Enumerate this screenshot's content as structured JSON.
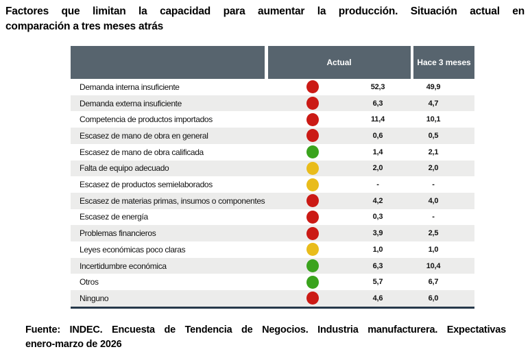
{
  "title": {
    "line1": "Factores que limitan la capacidad para aumentar la producción. Situación actual en",
    "line2": "comparación a tres meses atrás"
  },
  "table": {
    "columns": {
      "factor": "",
      "actual": "Actual",
      "three_months_ago": "Hace 3 meses"
    },
    "rows": [
      {
        "factor": "Demanda interna insuficiente",
        "status": "red",
        "actual": "52,3",
        "three_months_ago": "49,9"
      },
      {
        "factor": "Demanda externa insuficiente",
        "status": "red",
        "actual": "6,3",
        "three_months_ago": "4,7"
      },
      {
        "factor": "Competencia de productos importados",
        "status": "red",
        "actual": "11,4",
        "three_months_ago": "10,1"
      },
      {
        "factor": "Escasez de mano de obra en general",
        "status": "red",
        "actual": "0,6",
        "three_months_ago": "0,5"
      },
      {
        "factor": "Escasez de mano de obra calificada",
        "status": "green",
        "actual": "1,4",
        "three_months_ago": "2,1"
      },
      {
        "factor": "Falta de equipo adecuado",
        "status": "yellow",
        "actual": "2,0",
        "three_months_ago": "2,0"
      },
      {
        "factor": "Escasez de productos semielaborados",
        "status": "yellow",
        "actual": "-",
        "three_months_ago": "-"
      },
      {
        "factor": "Escasez de materias primas, insumos o componentes",
        "status": "red",
        "actual": "4,2",
        "three_months_ago": "4,0"
      },
      {
        "factor": "Escasez de energía",
        "status": "red",
        "actual": "0,3",
        "three_months_ago": "-"
      },
      {
        "factor": "Problemas financieros",
        "status": "red",
        "actual": "3,9",
        "three_months_ago": "2,5"
      },
      {
        "factor": "Leyes económicas poco claras",
        "status": "yellow",
        "actual": "1,0",
        "three_months_ago": "1,0"
      },
      {
        "factor": "Incertidumbre económica",
        "status": "green",
        "actual": "6,3",
        "three_months_ago": "10,4"
      },
      {
        "factor": "Otros",
        "status": "green",
        "actual": "5,7",
        "three_months_ago": "6,7"
      },
      {
        "factor": "Ninguno",
        "status": "red",
        "actual": "4,6",
        "three_months_ago": "6,0"
      }
    ]
  },
  "source": {
    "line1": "Fuente: INDEC. Encuesta de Tendencia de Negocios. Industria manufacturera. Expectativas",
    "line2": "enero-marzo de 2026"
  },
  "colors": {
    "red": "#CB1A15",
    "green": "#3AA31D",
    "yellow": "#E9BC1B",
    "header_bg": "#57646E",
    "row_alt_bg": "#ECECEB",
    "bottom_rule": "#26384A"
  },
  "chart_data": {
    "type": "table",
    "title": "Factores que limitan la capacidad para aumentar la producción. Situación actual en comparación a tres meses atrás",
    "categories": [
      "Demanda interna insuficiente",
      "Demanda externa insuficiente",
      "Competencia de productos importados",
      "Escasez de mano de obra en general",
      "Escasez de mano de obra calificada",
      "Falta de equipo adecuado",
      "Escasez de productos semielaborados",
      "Escasez de materias primas, insumos o componentes",
      "Escasez de energía",
      "Problemas financieros",
      "Leyes económicas poco claras",
      "Incertidumbre económica",
      "Otros",
      "Ninguno"
    ],
    "series": [
      {
        "name": "Actual",
        "values": [
          52.3,
          6.3,
          11.4,
          0.6,
          1.4,
          2.0,
          null,
          4.2,
          0.3,
          3.9,
          1.0,
          6.3,
          5.7,
          4.6
        ]
      },
      {
        "name": "Hace 3 meses",
        "values": [
          49.9,
          4.7,
          10.1,
          0.5,
          2.1,
          2.0,
          null,
          4.0,
          null,
          2.5,
          1.0,
          10.4,
          6.7,
          6.0
        ]
      }
    ],
    "status_indicators": [
      "red",
      "red",
      "red",
      "red",
      "green",
      "yellow",
      "yellow",
      "red",
      "red",
      "red",
      "yellow",
      "green",
      "green",
      "red"
    ],
    "annotation": "Fuente: INDEC. Encuesta de Tendencia de Negocios. Industria manufacturera. Expectativas enero-marzo de 2026"
  }
}
